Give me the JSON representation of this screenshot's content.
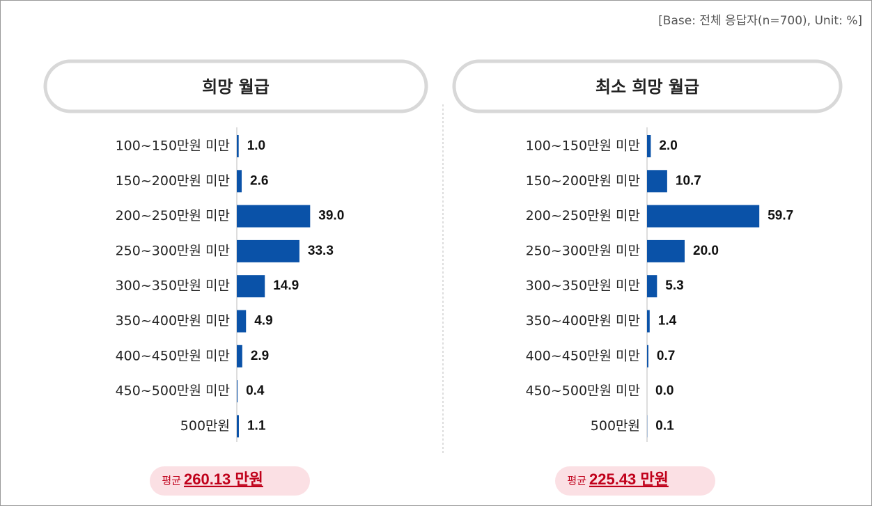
{
  "note": "[Base: 전체 응답자(n=700), Unit: %]",
  "chart_data": [
    {
      "type": "hbar",
      "title": "희망 월급",
      "categories": [
        "100~150만원 미만",
        "150~200만원 미만",
        "200~250만원 미만",
        "250~300만원 미만",
        "300~350만원 미만",
        "350~400만원 미만",
        "400~450만원 미만",
        "450~500만원 미만",
        "500만원"
      ],
      "values": [
        1.0,
        2.6,
        39.0,
        33.3,
        14.9,
        4.9,
        2.9,
        0.4,
        1.1
      ],
      "value_labels": [
        "1.0",
        "2.6",
        "39.0",
        "33.3",
        "14.9",
        "4.9",
        "2.9",
        "0.4",
        "1.1"
      ],
      "color": "#0a52a8",
      "xlim": [
        0,
        100
      ],
      "average_prefix": "평균",
      "average": "260.13 만원"
    },
    {
      "type": "hbar",
      "title": "최소 희망 월급",
      "categories": [
        "100~150만원 미만",
        "150~200만원 미만",
        "200~250만원 미만",
        "250~300만원 미만",
        "300~350만원 미만",
        "350~400만원 미만",
        "400~450만원 미만",
        "450~500만원 미만",
        "500만원"
      ],
      "values": [
        2.0,
        10.7,
        59.7,
        20.0,
        5.3,
        1.4,
        0.7,
        0.0,
        0.1
      ],
      "value_labels": [
        "2.0",
        "10.7",
        "59.7",
        "20.0",
        "5.3",
        "1.4",
        "0.7",
        "0.0",
        "0.1"
      ],
      "color": "#0a52a8",
      "xlim": [
        0,
        100
      ],
      "average_prefix": "평균",
      "average": "225.43 만원"
    }
  ]
}
